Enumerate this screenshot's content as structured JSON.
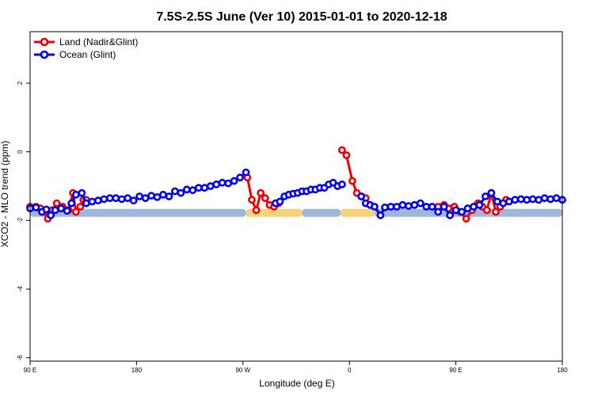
{
  "chart_data": {
    "type": "line",
    "title": "7.5S-2.5S June (Ver 10)   2015-01-01 to 2020-12-18",
    "xlabel": "Longitude (deg E)",
    "ylabel": "XCO2 - MLO trend (ppm)",
    "xlim": [
      90,
      450
    ],
    "ylim": [
      -6.1,
      3.5
    ],
    "x_ticks": [
      {
        "value": 90,
        "label": "90 E"
      },
      {
        "value": 162,
        "label": "180"
      },
      {
        "value": 234,
        "label": "90 W"
      },
      {
        "value": 306,
        "label": "0"
      },
      {
        "value": 378,
        "label": "90 E"
      },
      {
        "value": 450,
        "label": "180"
      }
    ],
    "y_ticks": [
      {
        "value": 2,
        "label": "2"
      },
      {
        "value": 0,
        "label": "0"
      },
      {
        "value": -2,
        "label": "-2"
      },
      {
        "value": -4,
        "label": "-4"
      },
      {
        "value": -6,
        "label": "-6"
      }
    ],
    "grid": false,
    "legend_position": "top-left",
    "series": [
      {
        "name": "Land (Nadir&Glint)",
        "color": "#ee0000",
        "segments": [
          {
            "x": [
              90,
              94,
              97,
              100,
              102,
              105,
              108,
              112,
              116,
              119,
              121,
              124,
              126,
              128
            ],
            "y": [
              -1.6,
              -1.6,
              -1.65,
              -1.75,
              -1.95,
              -1.7,
              -1.5,
              -1.6,
              -1.7,
              -1.2,
              -1.75,
              -1.6,
              -1.4,
              -1.4
            ]
          },
          {
            "x": [
              237,
              240,
              243,
              246,
              249,
              252,
              255,
              258
            ],
            "y": [
              -0.75,
              -1.4,
              -1.7,
              -1.2,
              -1.35,
              -1.55,
              -1.6,
              -1.5
            ]
          },
          {
            "x": [
              301,
              304,
              308,
              311,
              314,
              317
            ],
            "y": [
              0.05,
              -0.1,
              -0.85,
              -1.2,
              -1.3,
              -1.35
            ]
          },
          {
            "x": [
              366,
              370,
              373,
              377,
              381,
              385,
              389,
              393,
              396,
              399,
              402,
              405,
              408,
              412
            ],
            "y": [
              -1.6,
              -1.55,
              -1.65,
              -1.6,
              -1.75,
              -1.95,
              -1.7,
              -1.5,
              -1.6,
              -1.7,
              -1.2,
              -1.75,
              -1.6,
              -1.4
            ]
          }
        ]
      },
      {
        "name": "Ocean (Glint)",
        "color": "#0000ee",
        "segments": [
          {
            "x": [
              90,
              94,
              98,
              101,
              104,
              107,
              111,
              115,
              118,
              121,
              125,
              128,
              132,
              136,
              140,
              144,
              148,
              152,
              156,
              160,
              164,
              168,
              172,
              176,
              180,
              184,
              188,
              192,
              196,
              200,
              204,
              208,
              212,
              216,
              220,
              224,
              228,
              232,
              236
            ],
            "y": [
              -1.65,
              -1.62,
              -1.75,
              -1.68,
              -1.85,
              -1.7,
              -1.65,
              -1.72,
              -1.5,
              -1.25,
              -1.2,
              -1.5,
              -1.45,
              -1.42,
              -1.38,
              -1.35,
              -1.35,
              -1.38,
              -1.35,
              -1.42,
              -1.3,
              -1.35,
              -1.28,
              -1.32,
              -1.25,
              -1.3,
              -1.15,
              -1.2,
              -1.1,
              -1.12,
              -1.05,
              -1.05,
              -1.0,
              -0.95,
              -0.9,
              -0.92,
              -0.85,
              -0.75,
              -0.6
            ]
          },
          {
            "x": [
              256,
              259,
              262,
              265,
              268,
              271,
              274,
              277,
              280,
              283,
              286,
              289,
              292,
              295,
              298,
              301
            ],
            "y": [
              -1.5,
              -1.45,
              -1.3,
              -1.25,
              -1.22,
              -1.2,
              -1.15,
              -1.15,
              -1.1,
              -1.1,
              -1.05,
              -1.05,
              -0.95,
              -0.9,
              -1.0,
              -0.95
            ]
          },
          {
            "x": [
              314,
              317,
              320,
              323,
              327,
              330,
              334,
              338,
              342,
              346,
              350,
              354,
              358,
              362,
              366,
              370,
              374,
              378,
              382,
              386,
              390,
              394,
              398,
              402,
              406,
              410,
              414,
              418,
              422,
              426,
              430,
              434,
              438,
              442,
              446,
              450
            ],
            "y": [
              -1.3,
              -1.5,
              -1.55,
              -1.6,
              -1.85,
              -1.62,
              -1.6,
              -1.6,
              -1.55,
              -1.58,
              -1.55,
              -1.5,
              -1.6,
              -1.6,
              -1.75,
              -1.6,
              -1.85,
              -1.7,
              -1.75,
              -1.65,
              -1.6,
              -1.55,
              -1.3,
              -1.2,
              -1.45,
              -1.5,
              -1.45,
              -1.4,
              -1.38,
              -1.4,
              -1.38,
              -1.4,
              -1.35,
              -1.38,
              -1.35,
              -1.4
            ]
          }
        ]
      }
    ],
    "surface_bar": {
      "y": -1.78,
      "ocean_color": "#9fb8d9",
      "land_color": "#f6d27a",
      "spans": [
        {
          "type": "ocean",
          "x": [
            90,
            236
          ]
        },
        {
          "type": "land",
          "x": [
            236,
            274
          ]
        },
        {
          "type": "ocean",
          "x": [
            274,
            300
          ]
        },
        {
          "type": "land",
          "x": [
            300,
            323
          ]
        },
        {
          "type": "ocean",
          "x": [
            323,
            450
          ]
        }
      ]
    }
  }
}
